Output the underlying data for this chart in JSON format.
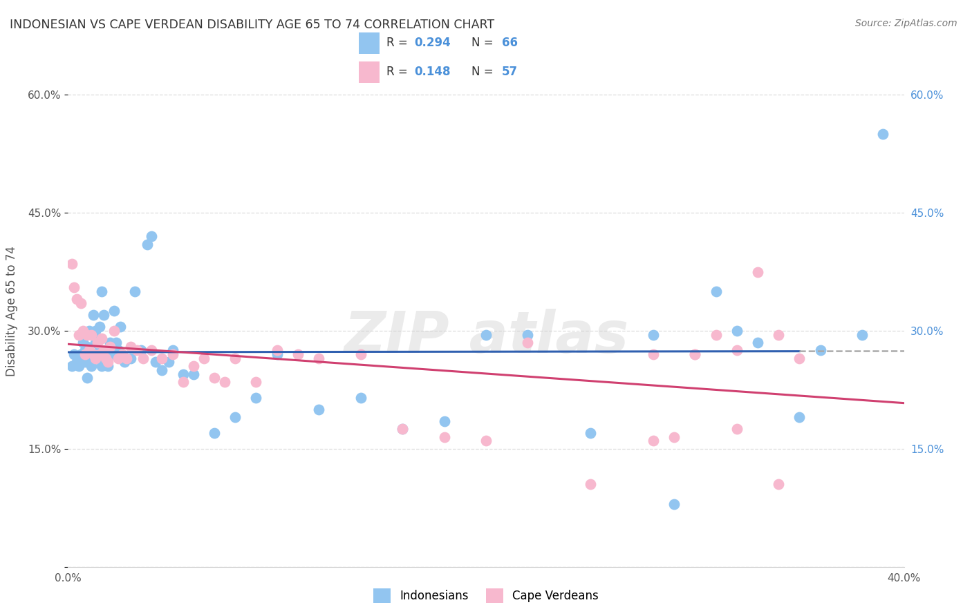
{
  "title": "INDONESIAN VS CAPE VERDEAN DISABILITY AGE 65 TO 74 CORRELATION CHART",
  "source": "Source: ZipAtlas.com",
  "ylabel": "Disability Age 65 to 74",
  "xlim": [
    0.0,
    0.4
  ],
  "ylim": [
    0.0,
    0.65
  ],
  "indonesian_color": "#92C5F0",
  "cape_verdean_color": "#F7B8CE",
  "indonesian_line_color": "#3060B0",
  "cape_verdean_line_color": "#D04070",
  "dash_line_color": "#AAAAAA",
  "background_color": "#FFFFFF",
  "grid_color": "#DDDDDD",
  "watermark_text": "ZIP atlas",
  "indonesian_x": [
    0.002,
    0.003,
    0.004,
    0.005,
    0.006,
    0.007,
    0.007,
    0.008,
    0.008,
    0.009,
    0.009,
    0.01,
    0.01,
    0.011,
    0.011,
    0.012,
    0.012,
    0.013,
    0.013,
    0.014,
    0.014,
    0.015,
    0.015,
    0.016,
    0.016,
    0.017,
    0.018,
    0.019,
    0.02,
    0.021,
    0.022,
    0.023,
    0.024,
    0.025,
    0.027,
    0.03,
    0.032,
    0.035,
    0.038,
    0.04,
    0.042,
    0.045,
    0.048,
    0.05,
    0.055,
    0.06,
    0.07,
    0.08,
    0.09,
    0.1,
    0.12,
    0.14,
    0.16,
    0.18,
    0.2,
    0.22,
    0.25,
    0.28,
    0.32,
    0.35,
    0.38,
    0.39,
    0.29,
    0.31,
    0.33,
    0.36
  ],
  "indonesian_y": [
    0.255,
    0.27,
    0.26,
    0.255,
    0.27,
    0.265,
    0.285,
    0.26,
    0.275,
    0.24,
    0.28,
    0.265,
    0.3,
    0.27,
    0.255,
    0.27,
    0.32,
    0.285,
    0.3,
    0.29,
    0.265,
    0.275,
    0.305,
    0.255,
    0.35,
    0.32,
    0.265,
    0.255,
    0.285,
    0.27,
    0.325,
    0.285,
    0.275,
    0.305,
    0.26,
    0.265,
    0.35,
    0.275,
    0.41,
    0.42,
    0.26,
    0.25,
    0.26,
    0.275,
    0.245,
    0.245,
    0.17,
    0.19,
    0.215,
    0.27,
    0.2,
    0.215,
    0.175,
    0.185,
    0.295,
    0.295,
    0.17,
    0.295,
    0.3,
    0.19,
    0.295,
    0.55,
    0.08,
    0.35,
    0.285,
    0.275
  ],
  "cape_verdean_x": [
    0.002,
    0.003,
    0.004,
    0.005,
    0.006,
    0.007,
    0.008,
    0.009,
    0.01,
    0.011,
    0.012,
    0.013,
    0.014,
    0.015,
    0.016,
    0.017,
    0.018,
    0.019,
    0.02,
    0.022,
    0.024,
    0.026,
    0.028,
    0.03,
    0.033,
    0.036,
    0.04,
    0.045,
    0.05,
    0.055,
    0.06,
    0.065,
    0.07,
    0.075,
    0.08,
    0.09,
    0.1,
    0.11,
    0.12,
    0.14,
    0.16,
    0.18,
    0.2,
    0.22,
    0.25,
    0.28,
    0.3,
    0.32,
    0.34,
    0.29,
    0.31,
    0.33,
    0.35,
    0.3,
    0.28,
    0.32,
    0.34
  ],
  "cape_verdean_y": [
    0.385,
    0.355,
    0.34,
    0.295,
    0.335,
    0.3,
    0.27,
    0.295,
    0.275,
    0.295,
    0.27,
    0.265,
    0.285,
    0.27,
    0.29,
    0.275,
    0.265,
    0.26,
    0.28,
    0.3,
    0.265,
    0.27,
    0.265,
    0.28,
    0.275,
    0.265,
    0.275,
    0.265,
    0.27,
    0.235,
    0.255,
    0.265,
    0.24,
    0.235,
    0.265,
    0.235,
    0.275,
    0.27,
    0.265,
    0.27,
    0.175,
    0.165,
    0.16,
    0.285,
    0.105,
    0.16,
    0.27,
    0.175,
    0.105,
    0.165,
    0.295,
    0.375,
    0.265,
    0.27,
    0.27,
    0.275,
    0.295
  ]
}
